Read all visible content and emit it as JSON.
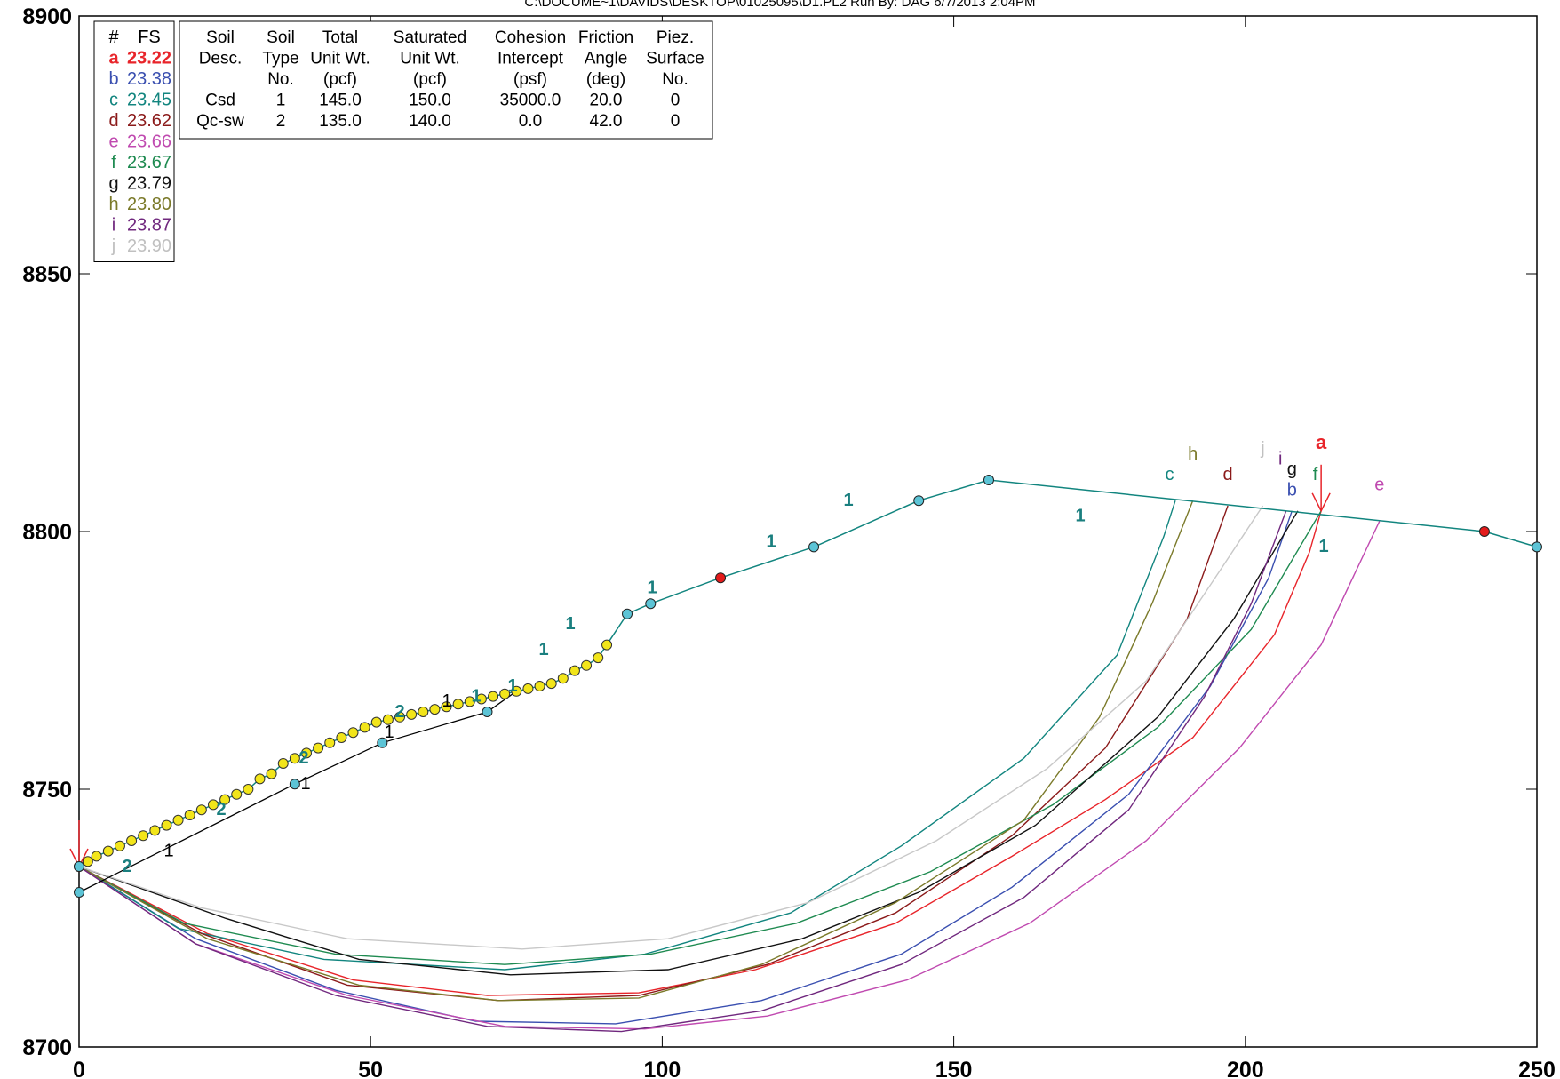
{
  "header": "C:\\DOCUME~1\\DAVIDS\\DESKTOP\\01025095\\D1.PL2   Run By: DAG   6/7/2013   2:04PM",
  "chart_data": {
    "type": "line",
    "xlim": [
      0,
      250
    ],
    "ylim": [
      8700,
      8900
    ],
    "x_ticks": [
      "0",
      "50",
      "100",
      "150",
      "200",
      "250"
    ],
    "y_ticks": [
      "8700",
      "8750",
      "8800",
      "8850",
      "8900"
    ],
    "fs_legend": {
      "headers": [
        "#",
        "FS"
      ],
      "rows": [
        {
          "id": "a",
          "fs": "23.22",
          "color": "#e8242a"
        },
        {
          "id": "b",
          "fs": "23.38",
          "color": "#3a4fb0"
        },
        {
          "id": "c",
          "fs": "23.45",
          "color": "#12857f"
        },
        {
          "id": "d",
          "fs": "23.62",
          "color": "#8b1a1a"
        },
        {
          "id": "e",
          "fs": "23.66",
          "color": "#c04ab0"
        },
        {
          "id": "f",
          "fs": "23.67",
          "color": "#1e8a50"
        },
        {
          "id": "g",
          "fs": "23.79",
          "color": "#111111"
        },
        {
          "id": "h",
          "fs": "23.80",
          "color": "#7b7a2a"
        },
        {
          "id": "i",
          "fs": "23.87",
          "color": "#70287e"
        },
        {
          "id": "j",
          "fs": "23.90",
          "color": "#c0c0c0"
        }
      ]
    },
    "soil_table": {
      "header_rows": [
        [
          "Soil",
          "Soil",
          "Total",
          "Saturated",
          "Cohesion",
          "Friction",
          "Piez."
        ],
        [
          "Desc.",
          "Type",
          "Unit Wt.",
          "Unit Wt.",
          "Intercept",
          "Angle",
          "Surface"
        ],
        [
          "",
          "No.",
          "(pcf)",
          "(pcf)",
          "(psf)",
          "(deg)",
          "No."
        ]
      ],
      "rows": [
        [
          "Csd",
          "1",
          "145.0",
          "150.0",
          "35000.0",
          "20.0",
          "0"
        ],
        [
          "Qc-sw",
          "2",
          "135.0",
          "140.0",
          "0.0",
          "42.0",
          "0"
        ]
      ]
    },
    "ground_surface": [
      [
        0,
        8735
      ],
      [
        1,
        8736
      ],
      [
        3,
        8737
      ],
      [
        5,
        8738
      ],
      [
        7,
        8739
      ],
      [
        9,
        8740
      ],
      [
        11,
        8741
      ],
      [
        13,
        8742
      ],
      [
        15,
        8743
      ],
      [
        17,
        8744
      ],
      [
        19,
        8745
      ],
      [
        21,
        8746
      ],
      [
        23,
        8747
      ],
      [
        25,
        8748
      ],
      [
        27,
        8749
      ],
      [
        29,
        8750
      ],
      [
        31,
        8752
      ],
      [
        33,
        8753
      ],
      [
        35,
        8755
      ],
      [
        37,
        8756
      ],
      [
        39,
        8757
      ],
      [
        41,
        8758
      ],
      [
        43,
        8759
      ],
      [
        45,
        8760
      ],
      [
        47,
        8761
      ],
      [
        49,
        8762
      ],
      [
        51,
        8763
      ],
      [
        53,
        8763.5
      ],
      [
        55,
        8764
      ],
      [
        57,
        8764.5
      ],
      [
        59,
        8765
      ],
      [
        61,
        8765.5
      ],
      [
        63,
        8766
      ],
      [
        65,
        8766.5
      ],
      [
        67,
        8767
      ],
      [
        69,
        8767.5
      ],
      [
        71,
        8768
      ],
      [
        73,
        8768.5
      ],
      [
        75,
        8769
      ],
      [
        77,
        8769.5
      ],
      [
        79,
        8770
      ],
      [
        81,
        8770.5
      ],
      [
        83,
        8771.5
      ],
      [
        85,
        8773
      ],
      [
        87,
        8774
      ],
      [
        89,
        8775.5
      ],
      [
        90.5,
        8778
      ],
      [
        94,
        8784
      ],
      [
        98,
        8786
      ],
      [
        110,
        8791
      ],
      [
        126,
        8797
      ],
      [
        144,
        8806
      ],
      [
        156,
        8810
      ],
      [
        241,
        8800
      ],
      [
        250,
        8797
      ]
    ],
    "ground_points": [
      [
        0,
        8735
      ],
      [
        94,
        8784
      ],
      [
        98,
        8786
      ],
      [
        126,
        8797
      ],
      [
        144,
        8806
      ],
      [
        156,
        8810
      ],
      [
        250,
        8797
      ]
    ],
    "limit_points": [
      [
        110,
        8791
      ],
      [
        241,
        8800
      ]
    ],
    "search_points": [
      [
        0,
        8735
      ],
      [
        1.5,
        8736
      ],
      [
        3,
        8737
      ],
      [
        5,
        8738
      ],
      [
        7,
        8739
      ],
      [
        9,
        8740
      ],
      [
        11,
        8741
      ],
      [
        13,
        8742
      ],
      [
        15,
        8743
      ],
      [
        17,
        8744
      ],
      [
        19,
        8745
      ],
      [
        21,
        8746
      ],
      [
        23,
        8747
      ],
      [
        25,
        8748
      ],
      [
        27,
        8749
      ],
      [
        29,
        8750
      ],
      [
        31,
        8752
      ],
      [
        33,
        8753
      ],
      [
        35,
        8755
      ],
      [
        37,
        8756
      ],
      [
        39,
        8757
      ],
      [
        41,
        8758
      ],
      [
        43,
        8759
      ],
      [
        45,
        8760
      ],
      [
        47,
        8761
      ],
      [
        49,
        8762
      ],
      [
        51,
        8763
      ],
      [
        53,
        8763.5
      ],
      [
        55,
        8764
      ],
      [
        57,
        8764.5
      ],
      [
        59,
        8765
      ],
      [
        61,
        8765.5
      ],
      [
        63,
        8766
      ],
      [
        65,
        8766.5
      ],
      [
        67,
        8767
      ],
      [
        69,
        8767.5
      ],
      [
        71,
        8768
      ],
      [
        73,
        8768.5
      ],
      [
        75,
        8769
      ],
      [
        77,
        8769.5
      ],
      [
        79,
        8770
      ],
      [
        81,
        8770.5
      ],
      [
        83,
        8771.5
      ],
      [
        85,
        8773
      ],
      [
        87,
        8774
      ],
      [
        89,
        8775.5
      ],
      [
        90.5,
        8778
      ]
    ],
    "layer_boundary": [
      [
        0,
        8730
      ],
      [
        37,
        8751
      ],
      [
        52,
        8759
      ],
      [
        70,
        8765
      ],
      [
        75,
        8769
      ]
    ],
    "layer_boundary_points": [
      [
        0,
        8730
      ],
      [
        37,
        8751
      ],
      [
        52,
        8759
      ],
      [
        70,
        8765
      ]
    ],
    "soil_labels": [
      {
        "text": "1",
        "x": 190,
        "y": 8737,
        "color": "#000",
        "bold": false
      },
      {
        "text": "1",
        "x": 344,
        "y": 8750,
        "color": "#000",
        "bold": false
      },
      {
        "text": "1",
        "x": 438,
        "y": 8760,
        "color": "#000",
        "bold": false
      },
      {
        "text": "1",
        "x": 503,
        "y": 8766,
        "color": "#000",
        "bold": false
      },
      {
        "text": "2",
        "x": 143,
        "y": 8734,
        "color": "#1a7f7f",
        "bold": true
      },
      {
        "text": "2",
        "x": 249,
        "y": 8745,
        "color": "#1a7f7f",
        "bold": true
      },
      {
        "text": "2",
        "x": 342,
        "y": 8755,
        "color": "#1a7f7f",
        "bold": true
      },
      {
        "text": "2",
        "x": 450,
        "y": 8764,
        "color": "#1a7f7f",
        "bold": true
      },
      {
        "text": "1",
        "x": 536,
        "y": 8767,
        "color": "#1a7f7f",
        "bold": true
      },
      {
        "text": "1",
        "x": 577,
        "y": 8769,
        "color": "#1a7f7f",
        "bold": true
      },
      {
        "text": "1",
        "x": 612,
        "y": 8776,
        "color": "#1a7f7f",
        "bold": true
      },
      {
        "text": "1",
        "x": 642,
        "y": 8781,
        "color": "#1a7f7f",
        "bold": true
      },
      {
        "text": "1",
        "x": 734,
        "y": 8788,
        "color": "#1a7f7f",
        "bold": true
      },
      {
        "text": "1",
        "x": 868,
        "y": 8797,
        "color": "#1a7f7f",
        "bold": true
      },
      {
        "text": "1",
        "x": 955,
        "y": 8805,
        "color": "#1a7f7f",
        "bold": true
      },
      {
        "text": "1",
        "x": 1216,
        "y": 8802,
        "color": "#1a7f7f",
        "bold": true
      },
      {
        "text": "1",
        "x": 1490,
        "y": 8796,
        "color": "#1a7f7f",
        "bold": true
      }
    ],
    "series": [
      {
        "id": "a",
        "color": "#e8242a",
        "points": [
          [
            0,
            8735
          ],
          [
            22,
            8722
          ],
          [
            47,
            8713
          ],
          [
            70,
            8710
          ],
          [
            96,
            8710.5
          ],
          [
            116,
            8715
          ],
          [
            140,
            8724
          ],
          [
            160,
            8737
          ],
          [
            176,
            8748
          ],
          [
            191,
            8760
          ],
          [
            205,
            8780
          ],
          [
            211,
            8796
          ],
          [
            213,
            8804
          ]
        ]
      },
      {
        "id": "b",
        "color": "#3a4fb0",
        "points": [
          [
            0,
            8735
          ],
          [
            20,
            8721
          ],
          [
            44,
            8711
          ],
          [
            68,
            8705
          ],
          [
            92,
            8704.5
          ],
          [
            117,
            8709
          ],
          [
            141,
            8718
          ],
          [
            160,
            8731
          ],
          [
            180,
            8749
          ],
          [
            194,
            8770
          ],
          [
            204,
            8791
          ],
          [
            208,
            8804
          ]
        ]
      },
      {
        "id": "c",
        "color": "#12857f",
        "points": [
          [
            0,
            8735
          ],
          [
            17,
            8723
          ],
          [
            42,
            8717
          ],
          [
            73,
            8715
          ],
          [
            97,
            8718
          ],
          [
            122,
            8726
          ],
          [
            141,
            8739
          ],
          [
            162,
            8756
          ],
          [
            178,
            8776
          ],
          [
            186,
            8799
          ],
          [
            188,
            8806
          ]
        ]
      },
      {
        "id": "d",
        "color": "#8b1a1a",
        "points": [
          [
            0,
            8735
          ],
          [
            21,
            8722
          ],
          [
            46,
            8712
          ],
          [
            72,
            8709
          ],
          [
            96,
            8710
          ],
          [
            118,
            8716
          ],
          [
            140,
            8726
          ],
          [
            160,
            8741
          ],
          [
            176,
            8758
          ],
          [
            190,
            8783
          ],
          [
            197,
            8805
          ]
        ]
      },
      {
        "id": "e",
        "color": "#c04ab0",
        "points": [
          [
            0,
            8735
          ],
          [
            20,
            8720
          ],
          [
            46,
            8710
          ],
          [
            73,
            8704
          ],
          [
            97,
            8703.5
          ],
          [
            118,
            8706
          ],
          [
            142,
            8713
          ],
          [
            163,
            8724
          ],
          [
            183,
            8740
          ],
          [
            199,
            8758
          ],
          [
            213,
            8778
          ],
          [
            223,
            8802
          ]
        ]
      },
      {
        "id": "f",
        "color": "#1e8a50",
        "points": [
          [
            0,
            8735
          ],
          [
            18,
            8724
          ],
          [
            44,
            8718
          ],
          [
            73,
            8716
          ],
          [
            98,
            8718
          ],
          [
            123,
            8724
          ],
          [
            146,
            8734
          ],
          [
            167,
            8747
          ],
          [
            185,
            8762
          ],
          [
            201,
            8781
          ],
          [
            213,
            8804
          ]
        ]
      },
      {
        "id": "g",
        "color": "#111111",
        "points": [
          [
            0,
            8735
          ],
          [
            25,
            8725
          ],
          [
            48,
            8717
          ],
          [
            74,
            8714
          ],
          [
            101,
            8715
          ],
          [
            124,
            8721
          ],
          [
            144,
            8730
          ],
          [
            164,
            8743
          ],
          [
            185,
            8764
          ],
          [
            198,
            8783
          ],
          [
            209,
            8804
          ]
        ]
      },
      {
        "id": "h",
        "color": "#7b7a2a",
        "points": [
          [
            0,
            8735
          ],
          [
            22,
            8721
          ],
          [
            48,
            8712
          ],
          [
            72,
            8709
          ],
          [
            96,
            8709.5
          ],
          [
            117,
            8716
          ],
          [
            140,
            8728
          ],
          [
            162,
            8744
          ],
          [
            175,
            8764
          ],
          [
            184,
            8786
          ],
          [
            191,
            8806
          ]
        ]
      },
      {
        "id": "i",
        "color": "#70287e",
        "points": [
          [
            0,
            8735
          ],
          [
            20,
            8720
          ],
          [
            44,
            8710
          ],
          [
            70,
            8704
          ],
          [
            93,
            8703
          ],
          [
            117,
            8707
          ],
          [
            141,
            8716
          ],
          [
            162,
            8729
          ],
          [
            180,
            8746
          ],
          [
            193,
            8768
          ],
          [
            201,
            8786
          ],
          [
            207,
            8804
          ]
        ]
      },
      {
        "id": "j",
        "color": "#c8c8c8",
        "points": [
          [
            0,
            8735
          ],
          [
            21,
            8727
          ],
          [
            46,
            8721
          ],
          [
            76,
            8719
          ],
          [
            101,
            8721
          ],
          [
            125,
            8728
          ],
          [
            147,
            8740
          ],
          [
            166,
            8754
          ],
          [
            183,
            8771
          ],
          [
            196,
            8793
          ],
          [
            203,
            8805
          ]
        ]
      }
    ],
    "circle_labels": [
      {
        "id": "c",
        "x": 187,
        "y": 8810,
        "color": "#12857f",
        "bold": false
      },
      {
        "id": "h",
        "x": 191,
        "y": 8814,
        "color": "#7b7a2a",
        "bold": false
      },
      {
        "id": "d",
        "x": 197,
        "y": 8810,
        "color": "#8b1a1a",
        "bold": false
      },
      {
        "id": "j",
        "x": 203,
        "y": 8815,
        "color": "#c0c0c0",
        "bold": false
      },
      {
        "id": "i",
        "x": 206,
        "y": 8813,
        "color": "#70287e",
        "bold": false
      },
      {
        "id": "g",
        "x": 208,
        "y": 8811,
        "color": "#111111",
        "bold": false
      },
      {
        "id": "b",
        "x": 208,
        "y": 8807,
        "color": "#3a4fb0",
        "bold": false
      },
      {
        "id": "f",
        "x": 212,
        "y": 8810,
        "color": "#1e8a50",
        "bold": false
      },
      {
        "id": "a",
        "x": 213,
        "y": 8816,
        "color": "#e8242a",
        "bold": true
      },
      {
        "id": "e",
        "x": 223,
        "y": 8808,
        "color": "#c04ab0",
        "bold": false
      }
    ]
  }
}
